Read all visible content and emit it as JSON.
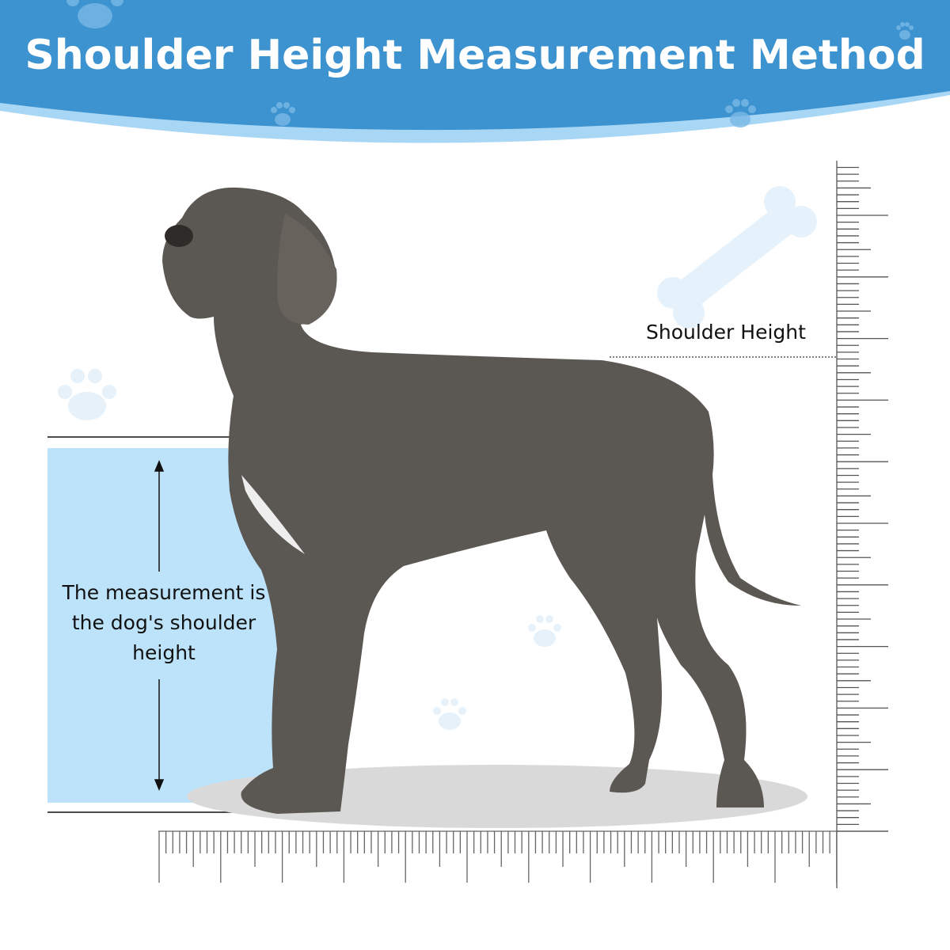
{
  "header": {
    "title": "Shoulder Height Measurement Method"
  },
  "labels": {
    "shoulder_height": "Shoulder Height",
    "measurement_note": "The measurement is the dog's shoulder height"
  },
  "colors": {
    "header_blue": "#3d93cf",
    "header_light": "#a8d6f5",
    "panel_blue": "#bde3fb",
    "dog": "#5b5752",
    "shadow": "#d9d9d9"
  },
  "icons": [
    "paw-print-icon",
    "bone-icon",
    "double-arrow-icon",
    "ruler-vertical",
    "ruler-horizontal",
    "dog-photo"
  ]
}
